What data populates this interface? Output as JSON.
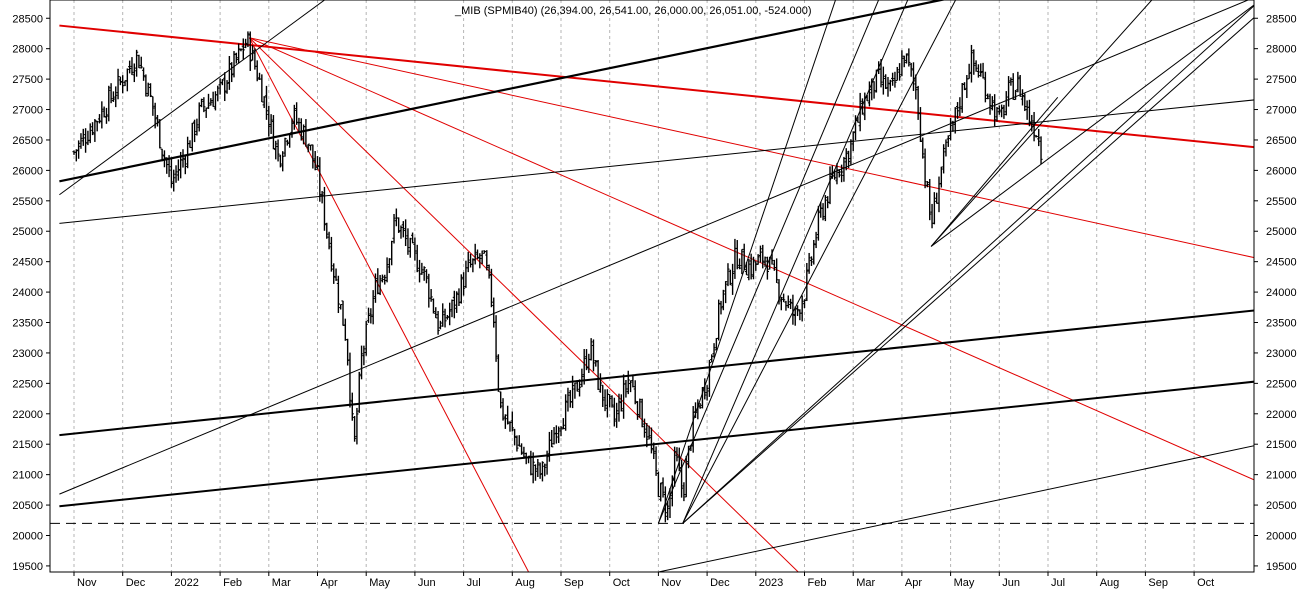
{
  "chart_data": {
    "type": "ohlc",
    "title": "_MIB (SPMIB40) (26,394.00, 26,541.00, 26,000.00, 26,051.00, -524.000)",
    "y_axis": {
      "ticks": [
        19500,
        20000,
        20500,
        21000,
        21500,
        22000,
        22500,
        23000,
        23500,
        24000,
        24500,
        25000,
        25500,
        26000,
        26500,
        27000,
        27500,
        28000,
        28500
      ],
      "range": [
        19400,
        28800
      ],
      "sides": "both"
    },
    "x_axis": {
      "ticks": [
        "Nov",
        "Dec",
        "2022",
        "Feb",
        "Mar",
        "Apr",
        "May",
        "Jun",
        "Jul",
        "Aug",
        "Sep",
        "Oct",
        "Nov",
        "Dec",
        "2023",
        "Feb",
        "Mar",
        "Apr",
        "May",
        "Jun",
        "Jul",
        "Aug",
        "Sep",
        "Oct"
      ],
      "range_months": [
        "2021-10",
        "2023-10"
      ]
    },
    "grid": "vertical-dashed",
    "price_anchors": [
      {
        "t": 0.0,
        "v": 26300
      },
      {
        "t": 0.6,
        "v": 27000
      },
      {
        "t": 1.0,
        "v": 27500
      },
      {
        "t": 1.3,
        "v": 27900
      },
      {
        "t": 1.6,
        "v": 27100
      },
      {
        "t": 1.8,
        "v": 26400
      },
      {
        "t": 2.0,
        "v": 25800
      },
      {
        "t": 2.3,
        "v": 26300
      },
      {
        "t": 2.6,
        "v": 27000
      },
      {
        "t": 3.0,
        "v": 27300
      },
      {
        "t": 3.4,
        "v": 27900
      },
      {
        "t": 3.55,
        "v": 28150
      },
      {
        "t": 3.8,
        "v": 27500
      },
      {
        "t": 4.2,
        "v": 26200
      },
      {
        "t": 4.5,
        "v": 26900
      },
      {
        "t": 4.8,
        "v": 26500
      },
      {
        "t": 5.0,
        "v": 25900
      },
      {
        "t": 5.3,
        "v": 24500
      },
      {
        "t": 5.6,
        "v": 23200
      },
      {
        "t": 5.75,
        "v": 21400
      },
      {
        "t": 5.9,
        "v": 22900
      },
      {
        "t": 6.2,
        "v": 24100
      },
      {
        "t": 6.4,
        "v": 24400
      },
      {
        "t": 6.6,
        "v": 25200
      },
      {
        "t": 6.9,
        "v": 24700
      },
      {
        "t": 7.2,
        "v": 24300
      },
      {
        "t": 7.5,
        "v": 23400
      },
      {
        "t": 7.8,
        "v": 23800
      },
      {
        "t": 8.1,
        "v": 24400
      },
      {
        "t": 8.4,
        "v": 24600
      },
      {
        "t": 8.6,
        "v": 23800
      },
      {
        "t": 8.75,
        "v": 22100
      },
      {
        "t": 9.0,
        "v": 21700
      },
      {
        "t": 9.3,
        "v": 21200
      },
      {
        "t": 9.6,
        "v": 21000
      },
      {
        "t": 9.9,
        "v": 21800
      },
      {
        "t": 10.2,
        "v": 22200
      },
      {
        "t": 10.4,
        "v": 22600
      },
      {
        "t": 10.6,
        "v": 23100
      },
      {
        "t": 10.8,
        "v": 22400
      },
      {
        "t": 11.1,
        "v": 21900
      },
      {
        "t": 11.4,
        "v": 22600
      },
      {
        "t": 11.6,
        "v": 22100
      },
      {
        "t": 11.8,
        "v": 21600
      },
      {
        "t": 12.0,
        "v": 20800
      },
      {
        "t": 12.2,
        "v": 20400
      },
      {
        "t": 12.35,
        "v": 21300
      },
      {
        "t": 12.5,
        "v": 20700
      },
      {
        "t": 12.7,
        "v": 21800
      },
      {
        "t": 13.0,
        "v": 22600
      },
      {
        "t": 13.3,
        "v": 23900
      },
      {
        "t": 13.6,
        "v": 24600
      },
      {
        "t": 13.9,
        "v": 24400
      },
      {
        "t": 14.2,
        "v": 24600
      },
      {
        "t": 14.5,
        "v": 24000
      },
      {
        "t": 14.8,
        "v": 23600
      },
      {
        "t": 15.0,
        "v": 24000
      },
      {
        "t": 15.3,
        "v": 25200
      },
      {
        "t": 15.6,
        "v": 25900
      },
      {
        "t": 15.9,
        "v": 26300
      },
      {
        "t": 16.2,
        "v": 27100
      },
      {
        "t": 16.5,
        "v": 27500
      },
      {
        "t": 16.8,
        "v": 27300
      },
      {
        "t": 17.05,
        "v": 27900
      },
      {
        "t": 17.3,
        "v": 27300
      },
      {
        "t": 17.45,
        "v": 26100
      },
      {
        "t": 17.6,
        "v": 25100
      },
      {
        "t": 17.8,
        "v": 26000
      },
      {
        "t": 18.0,
        "v": 26600
      },
      {
        "t": 18.2,
        "v": 27200
      },
      {
        "t": 18.4,
        "v": 27800
      },
      {
        "t": 18.6,
        "v": 27600
      },
      {
        "t": 18.8,
        "v": 27200
      },
      {
        "t": 19.0,
        "v": 26800
      },
      {
        "t": 19.2,
        "v": 27300
      },
      {
        "t": 19.4,
        "v": 27400
      },
      {
        "t": 19.6,
        "v": 26900
      },
      {
        "t": 19.8,
        "v": 26600
      },
      {
        "t": 19.9,
        "v": 26100
      }
    ],
    "trendlines": [
      {
        "color": "#e00000",
        "width": 2,
        "from": {
          "t": -0.3,
          "v": 28380
        },
        "to": {
          "t": 24.5,
          "v": 26360
        }
      },
      {
        "color": "#e00000",
        "width": 1,
        "from": {
          "t": 3.6,
          "v": 28180
        },
        "to": {
          "t": 24.5,
          "v": 24520
        }
      },
      {
        "color": "#e00000",
        "width": 1,
        "from": {
          "t": 3.6,
          "v": 28180
        },
        "to": {
          "t": 24.5,
          "v": 20820
        }
      },
      {
        "color": "#e00000",
        "width": 1,
        "from": {
          "t": 3.6,
          "v": 28180
        },
        "to": {
          "t": 15.0,
          "v": 19300
        }
      },
      {
        "color": "#e00000",
        "width": 1,
        "from": {
          "t": 3.6,
          "v": 28180
        },
        "to": {
          "t": 9.4,
          "v": 19300
        }
      },
      {
        "color": "#000000",
        "width": 2.2,
        "from": {
          "t": -0.3,
          "v": 25820
        },
        "to": {
          "t": 18.9,
          "v": 28980
        }
      },
      {
        "color": "#000000",
        "width": 2,
        "from": {
          "t": -0.3,
          "v": 21650
        },
        "to": {
          "t": 24.5,
          "v": 23720
        }
      },
      {
        "color": "#000000",
        "width": 2,
        "from": {
          "t": -0.3,
          "v": 20480
        },
        "to": {
          "t": 24.5,
          "v": 22550
        }
      },
      {
        "color": "#000000",
        "width": 1,
        "from": {
          "t": -0.3,
          "v": 25130
        },
        "to": {
          "t": 24.5,
          "v": 27180
        }
      },
      {
        "color": "#000000",
        "width": 1,
        "from": {
          "t": -0.3,
          "v": 20680
        },
        "to": {
          "t": 24.5,
          "v": 28930
        }
      },
      {
        "color": "#000000",
        "width": 1,
        "from": {
          "t": -0.3,
          "v": 25600
        },
        "to": {
          "t": 5.4,
          "v": 28950
        }
      },
      {
        "color": "#000000",
        "width": 1,
        "from": {
          "t": 12.0,
          "v": 19400
        },
        "to": {
          "t": 24.5,
          "v": 21520
        }
      },
      {
        "color": "#000000",
        "width": 1,
        "from": {
          "t": 12.5,
          "v": 20200
        },
        "to": {
          "t": 24.5,
          "v": 28700
        }
      },
      {
        "color": "#000000",
        "width": 1,
        "from": {
          "t": 12.5,
          "v": 20200
        },
        "to": {
          "t": 24.5,
          "v": 28900
        }
      },
      {
        "color": "#000000",
        "width": 1,
        "from": {
          "t": 12.5,
          "v": 20200
        },
        "to": {
          "t": 17.2,
          "v": 28950
        }
      },
      {
        "color": "#000000",
        "width": 1,
        "from": {
          "t": 12.5,
          "v": 20200
        },
        "to": {
          "t": 18.2,
          "v": 28950
        }
      },
      {
        "color": "#000000",
        "width": 1,
        "from": {
          "t": 12.0,
          "v": 20200
        },
        "to": {
          "t": 16.6,
          "v": 28950
        }
      },
      {
        "color": "#000000",
        "width": 1,
        "from": {
          "t": 12.0,
          "v": 20200
        },
        "to": {
          "t": 15.7,
          "v": 28950
        }
      },
      {
        "color": "#000000",
        "width": 1,
        "from": {
          "t": 17.6,
          "v": 24750
        },
        "to": {
          "t": 22.3,
          "v": 28950
        }
      },
      {
        "color": "#000000",
        "width": 1,
        "from": {
          "t": 17.6,
          "v": 24750
        },
        "to": {
          "t": 24.5,
          "v": 28880
        }
      },
      {
        "color": "#000000",
        "width": 1,
        "from": {
          "t": 17.6,
          "v": 24750
        },
        "to": {
          "t": 20.2,
          "v": 27200
        }
      }
    ],
    "support_line": {
      "v": 20200,
      "style": "dashed",
      "color": "#000000"
    }
  }
}
